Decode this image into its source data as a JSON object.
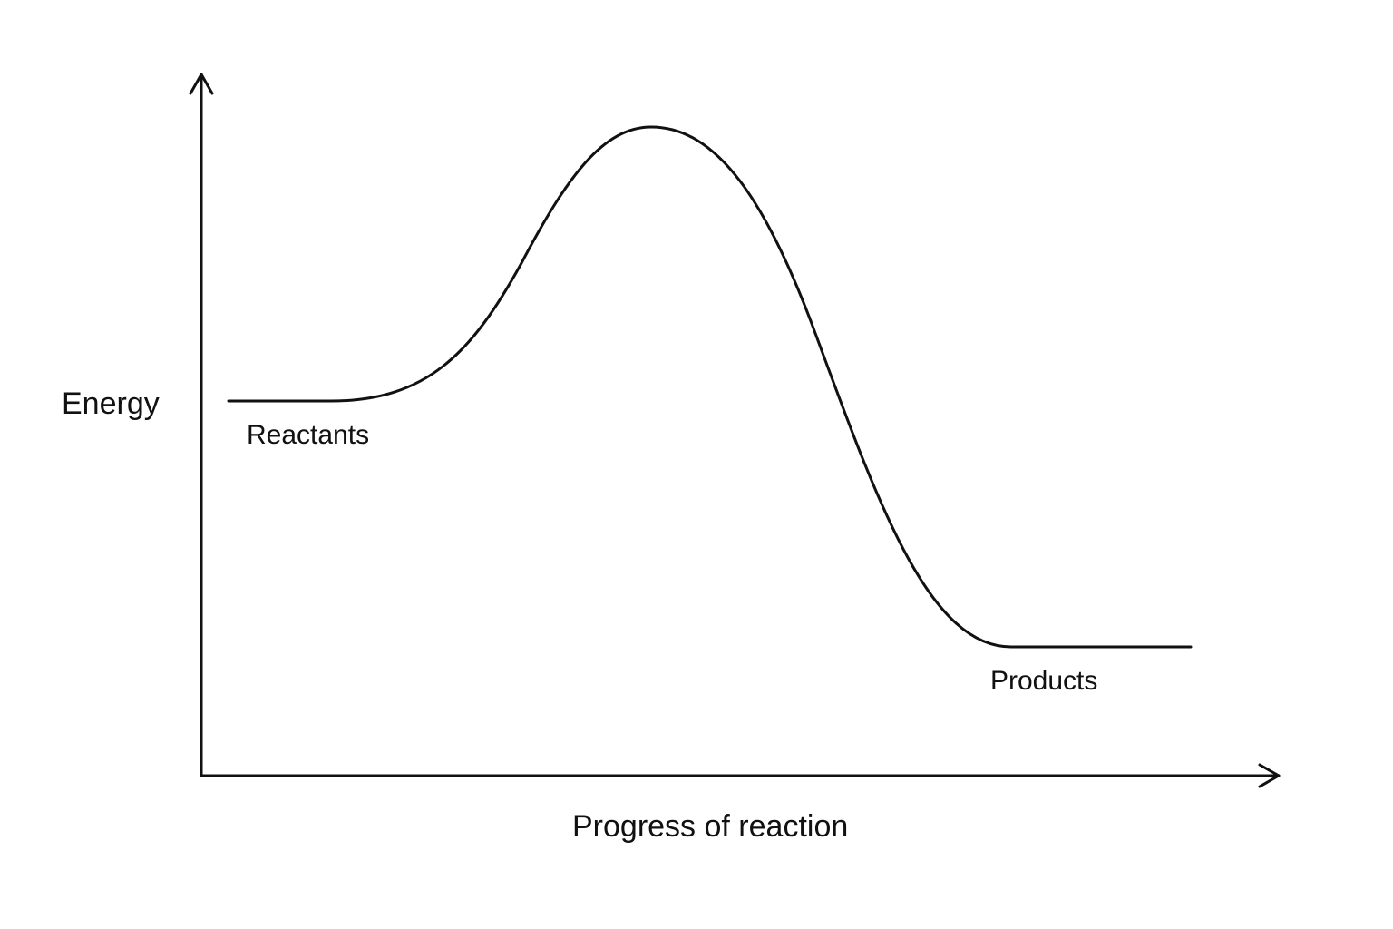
{
  "diagram": {
    "y_axis_label": "Energy",
    "x_axis_label": "Progress of reaction",
    "reactants_label": "Reactants",
    "products_label": "Products",
    "line_color": "#111111",
    "background_color": "#ffffff"
  }
}
